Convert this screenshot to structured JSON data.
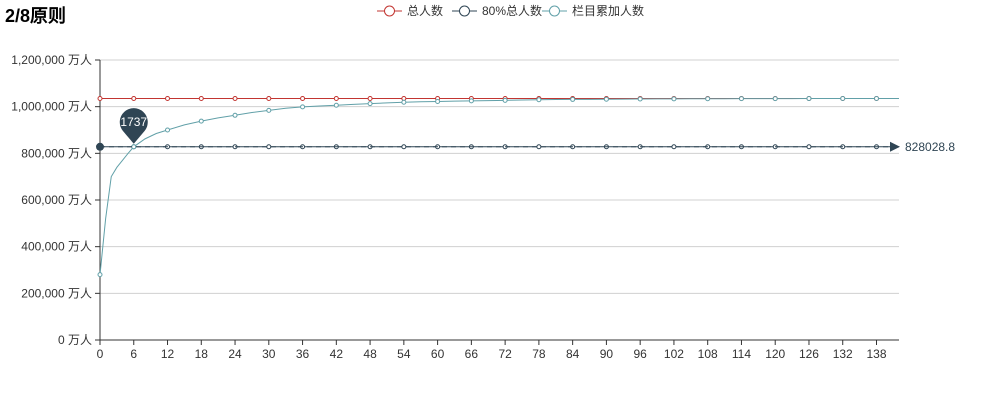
{
  "chart_data": {
    "type": "line",
    "title": "2/8原则",
    "xlabel": "",
    "ylabel": "",
    "legend_position": "top-center",
    "grid": true,
    "x_ticks": [
      0,
      6,
      12,
      18,
      24,
      30,
      36,
      42,
      48,
      54,
      60,
      66,
      72,
      78,
      84,
      90,
      96,
      102,
      108,
      114,
      120,
      126,
      132,
      138
    ],
    "x_range": [
      0,
      142
    ],
    "y_range": [
      0,
      1200000
    ],
    "y_ticks": [
      0,
      200000,
      400000,
      600000,
      800000,
      1000000,
      1200000
    ],
    "y_tick_labels": [
      "0 万人",
      "200,000 万人",
      "400,000 万人",
      "600,000 万人",
      "800,000 万人",
      "1,000,000 万人",
      "1,200,000 万人"
    ],
    "marker_every": 6,
    "series": [
      {
        "name": "总人数",
        "color": "#c23531",
        "x": [
          0,
          142
        ],
        "values": [
          1035036,
          1035036
        ]
      },
      {
        "name": "80%总人数",
        "color": "#2f4554",
        "x": [
          0,
          142
        ],
        "values": [
          828028.8,
          828028.8
        ]
      },
      {
        "name": "栏目累加人数",
        "color": "#61a0a8",
        "x": [
          0,
          1,
          2,
          3,
          4,
          5,
          6,
          8,
          10,
          12,
          15,
          18,
          21,
          24,
          27,
          30,
          33,
          36,
          39,
          42,
          45,
          48,
          51,
          54,
          57,
          60,
          63,
          66,
          69,
          72,
          75,
          78,
          81,
          84,
          87,
          90,
          93,
          96,
          99,
          102,
          105,
          108,
          111,
          114,
          117,
          120,
          123,
          126,
          129,
          132,
          135,
          138,
          142
        ],
        "values": [
          280000,
          520000,
          700000,
          740000,
          770000,
          800000,
          828000,
          862000,
          885000,
          900000,
          922000,
          938000,
          952000,
          963000,
          975000,
          984000,
          993000,
          999000,
          1003000,
          1006000,
          1010000,
          1013000,
          1016000,
          1019000,
          1021000,
          1022000,
          1023500,
          1025000,
          1026000,
          1027000,
          1028500,
          1029500,
          1030500,
          1031000,
          1031500,
          1032000,
          1032500,
          1033000,
          1033300,
          1033500,
          1033800,
          1034000,
          1034200,
          1034400,
          1034500,
          1034600,
          1034700,
          1034800,
          1034850,
          1034900,
          1034950,
          1035000,
          1035036
        ]
      }
    ],
    "mark_point": {
      "x": 6,
      "value": 828028.8,
      "label": "1737",
      "color": "#2f4554"
    },
    "mark_line": {
      "value": 828028.8,
      "label": "828028.8",
      "color": "#2f4554"
    }
  }
}
